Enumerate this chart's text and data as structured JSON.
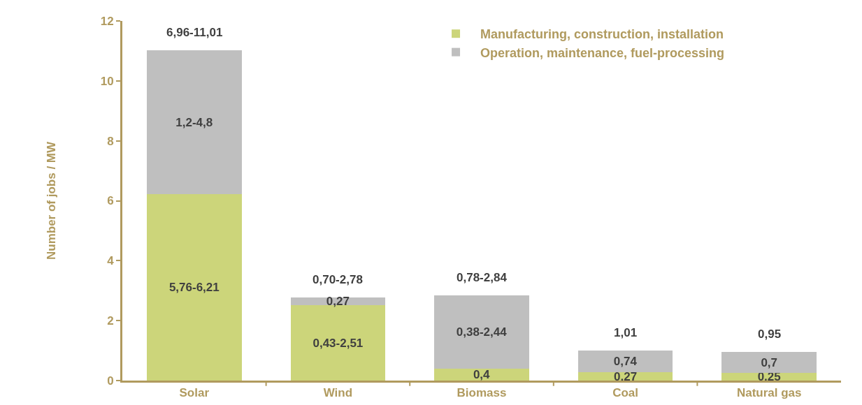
{
  "chart_data": {
    "type": "bar",
    "stacked": true,
    "ylabel": "Number of jobs / MW",
    "categories": [
      "Solar",
      "Wind",
      "Biomass",
      "Coal",
      "Natural gas"
    ],
    "series": [
      {
        "name": "Manufacturing, construction, installation",
        "color": "#ccd57a",
        "values": [
          6.21,
          2.51,
          0.4,
          0.27,
          0.25
        ],
        "value_labels": [
          "5,76-6,21",
          "0,43-2,51",
          "0,4",
          "0,27",
          "0,25"
        ]
      },
      {
        "name": "Operation, maintenance, fuel-processing",
        "color": "#bfbfbf",
        "values": [
          4.8,
          0.27,
          2.44,
          0.74,
          0.7
        ],
        "value_labels": [
          "1,2-4,8",
          "0,27",
          "0,38-2,44",
          "0,74",
          "0,7"
        ]
      }
    ],
    "totals": [
      "6,96-11,01",
      "0,70-2,78",
      "0,78-2,84",
      "1,01",
      "0,95"
    ],
    "ylim": [
      0,
      12
    ],
    "yticks": [
      0,
      2,
      4,
      6,
      8,
      10,
      12
    ],
    "grid": false,
    "legend": "top right"
  }
}
